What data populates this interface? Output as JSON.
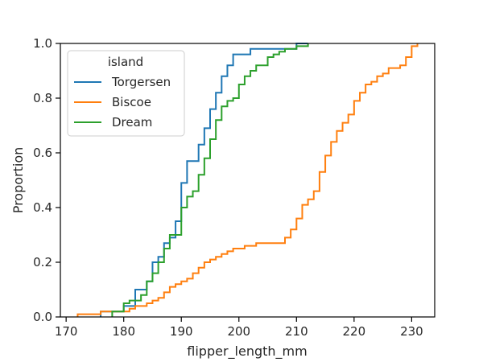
{
  "chart_data": {
    "type": "line",
    "subtype": "ecdf-step",
    "xlabel": "flipper_length_mm",
    "ylabel": "Proportion",
    "xlim": [
      169,
      234
    ],
    "ylim": [
      0,
      1.0
    ],
    "xticks": [
      170,
      180,
      190,
      200,
      210,
      220,
      230
    ],
    "yticks": [
      0.0,
      0.2,
      0.4,
      0.6,
      0.8,
      1.0
    ],
    "xtick_labels": [
      "170",
      "180",
      "190",
      "200",
      "210",
      "220",
      "230"
    ],
    "ytick_labels": [
      "0.0",
      "0.2",
      "0.4",
      "0.6",
      "0.8",
      "1.0"
    ],
    "grid": false,
    "legend": {
      "title": "island",
      "placement": "upper-left"
    },
    "series": [
      {
        "name": "Torgersen",
        "color": "#1f77b4",
        "points": [
          [
            176,
            0
          ],
          [
            176,
            0.02
          ],
          [
            180,
            0.02
          ],
          [
            180,
            0.04
          ],
          [
            182,
            0.04
          ],
          [
            182,
            0.1
          ],
          [
            184,
            0.1
          ],
          [
            184,
            0.13
          ],
          [
            185,
            0.13
          ],
          [
            185,
            0.2
          ],
          [
            186,
            0.2
          ],
          [
            186,
            0.22
          ],
          [
            187,
            0.22
          ],
          [
            187,
            0.27
          ],
          [
            188,
            0.27
          ],
          [
            188,
            0.29
          ],
          [
            189,
            0.29
          ],
          [
            189,
            0.35
          ],
          [
            190,
            0.35
          ],
          [
            190,
            0.49
          ],
          [
            191,
            0.49
          ],
          [
            191,
            0.57
          ],
          [
            193,
            0.57
          ],
          [
            193,
            0.63
          ],
          [
            194,
            0.63
          ],
          [
            194,
            0.69
          ],
          [
            195,
            0.69
          ],
          [
            195,
            0.76
          ],
          [
            196,
            0.76
          ],
          [
            196,
            0.82
          ],
          [
            197,
            0.82
          ],
          [
            197,
            0.88
          ],
          [
            198,
            0.88
          ],
          [
            198,
            0.92
          ],
          [
            199,
            0.92
          ],
          [
            199,
            0.96
          ],
          [
            202,
            0.96
          ],
          [
            202,
            0.98
          ],
          [
            210,
            0.98
          ],
          [
            210,
            1.0
          ],
          [
            212,
            1.0
          ]
        ]
      },
      {
        "name": "Biscoe",
        "color": "#ff7f0e",
        "points": [
          [
            172,
            0
          ],
          [
            172,
            0.01
          ],
          [
            176,
            0.01
          ],
          [
            176,
            0.02
          ],
          [
            181,
            0.02
          ],
          [
            181,
            0.03
          ],
          [
            182,
            0.03
          ],
          [
            182,
            0.04
          ],
          [
            184,
            0.04
          ],
          [
            184,
            0.05
          ],
          [
            185,
            0.05
          ],
          [
            185,
            0.06
          ],
          [
            186,
            0.06
          ],
          [
            186,
            0.07
          ],
          [
            187,
            0.07
          ],
          [
            187,
            0.09
          ],
          [
            188,
            0.09
          ],
          [
            188,
            0.11
          ],
          [
            189,
            0.11
          ],
          [
            189,
            0.12
          ],
          [
            190,
            0.12
          ],
          [
            190,
            0.13
          ],
          [
            191,
            0.13
          ],
          [
            191,
            0.14
          ],
          [
            192,
            0.14
          ],
          [
            192,
            0.16
          ],
          [
            193,
            0.16
          ],
          [
            193,
            0.18
          ],
          [
            194,
            0.18
          ],
          [
            194,
            0.2
          ],
          [
            195,
            0.2
          ],
          [
            195,
            0.21
          ],
          [
            196,
            0.21
          ],
          [
            196,
            0.22
          ],
          [
            197,
            0.22
          ],
          [
            197,
            0.23
          ],
          [
            198,
            0.23
          ],
          [
            198,
            0.24
          ],
          [
            199,
            0.24
          ],
          [
            199,
            0.25
          ],
          [
            201,
            0.25
          ],
          [
            201,
            0.26
          ],
          [
            203,
            0.26
          ],
          [
            203,
            0.27
          ],
          [
            208,
            0.27
          ],
          [
            208,
            0.29
          ],
          [
            209,
            0.29
          ],
          [
            209,
            0.32
          ],
          [
            210,
            0.32
          ],
          [
            210,
            0.36
          ],
          [
            211,
            0.36
          ],
          [
            211,
            0.41
          ],
          [
            212,
            0.41
          ],
          [
            212,
            0.43
          ],
          [
            213,
            0.43
          ],
          [
            213,
            0.46
          ],
          [
            214,
            0.46
          ],
          [
            214,
            0.53
          ],
          [
            215,
            0.53
          ],
          [
            215,
            0.59
          ],
          [
            216,
            0.59
          ],
          [
            216,
            0.64
          ],
          [
            217,
            0.64
          ],
          [
            217,
            0.68
          ],
          [
            218,
            0.68
          ],
          [
            218,
            0.71
          ],
          [
            219,
            0.71
          ],
          [
            219,
            0.74
          ],
          [
            220,
            0.74
          ],
          [
            220,
            0.79
          ],
          [
            221,
            0.79
          ],
          [
            221,
            0.82
          ],
          [
            222,
            0.82
          ],
          [
            222,
            0.85
          ],
          [
            223,
            0.85
          ],
          [
            223,
            0.86
          ],
          [
            224,
            0.86
          ],
          [
            224,
            0.88
          ],
          [
            225,
            0.88
          ],
          [
            225,
            0.89
          ],
          [
            226,
            0.89
          ],
          [
            226,
            0.91
          ],
          [
            228,
            0.91
          ],
          [
            228,
            0.92
          ],
          [
            229,
            0.92
          ],
          [
            229,
            0.95
          ],
          [
            230,
            0.95
          ],
          [
            230,
            0.99
          ],
          [
            231,
            0.99
          ],
          [
            231,
            1.0
          ]
        ]
      },
      {
        "name": "Dream",
        "color": "#2ca02c",
        "points": [
          [
            178,
            0
          ],
          [
            178,
            0.02
          ],
          [
            180,
            0.02
          ],
          [
            180,
            0.05
          ],
          [
            181,
            0.05
          ],
          [
            181,
            0.06
          ],
          [
            183,
            0.06
          ],
          [
            183,
            0.08
          ],
          [
            184,
            0.08
          ],
          [
            184,
            0.13
          ],
          [
            185,
            0.13
          ],
          [
            185,
            0.16
          ],
          [
            186,
            0.16
          ],
          [
            186,
            0.2
          ],
          [
            187,
            0.2
          ],
          [
            187,
            0.25
          ],
          [
            188,
            0.25
          ],
          [
            188,
            0.3
          ],
          [
            190,
            0.3
          ],
          [
            190,
            0.4
          ],
          [
            191,
            0.4
          ],
          [
            191,
            0.44
          ],
          [
            192,
            0.44
          ],
          [
            192,
            0.46
          ],
          [
            193,
            0.46
          ],
          [
            193,
            0.52
          ],
          [
            194,
            0.52
          ],
          [
            194,
            0.58
          ],
          [
            195,
            0.58
          ],
          [
            195,
            0.65
          ],
          [
            196,
            0.65
          ],
          [
            196,
            0.72
          ],
          [
            197,
            0.72
          ],
          [
            197,
            0.77
          ],
          [
            198,
            0.77
          ],
          [
            198,
            0.79
          ],
          [
            199,
            0.79
          ],
          [
            199,
            0.8
          ],
          [
            200,
            0.8
          ],
          [
            200,
            0.85
          ],
          [
            201,
            0.85
          ],
          [
            201,
            0.88
          ],
          [
            202,
            0.88
          ],
          [
            202,
            0.9
          ],
          [
            203,
            0.9
          ],
          [
            203,
            0.92
          ],
          [
            205,
            0.92
          ],
          [
            205,
            0.95
          ],
          [
            206,
            0.95
          ],
          [
            206,
            0.96
          ],
          [
            207,
            0.96
          ],
          [
            207,
            0.97
          ],
          [
            208,
            0.97
          ],
          [
            208,
            0.98
          ],
          [
            210,
            0.98
          ],
          [
            210,
            0.99
          ],
          [
            212,
            0.99
          ],
          [
            212,
            1.0
          ]
        ]
      }
    ]
  }
}
